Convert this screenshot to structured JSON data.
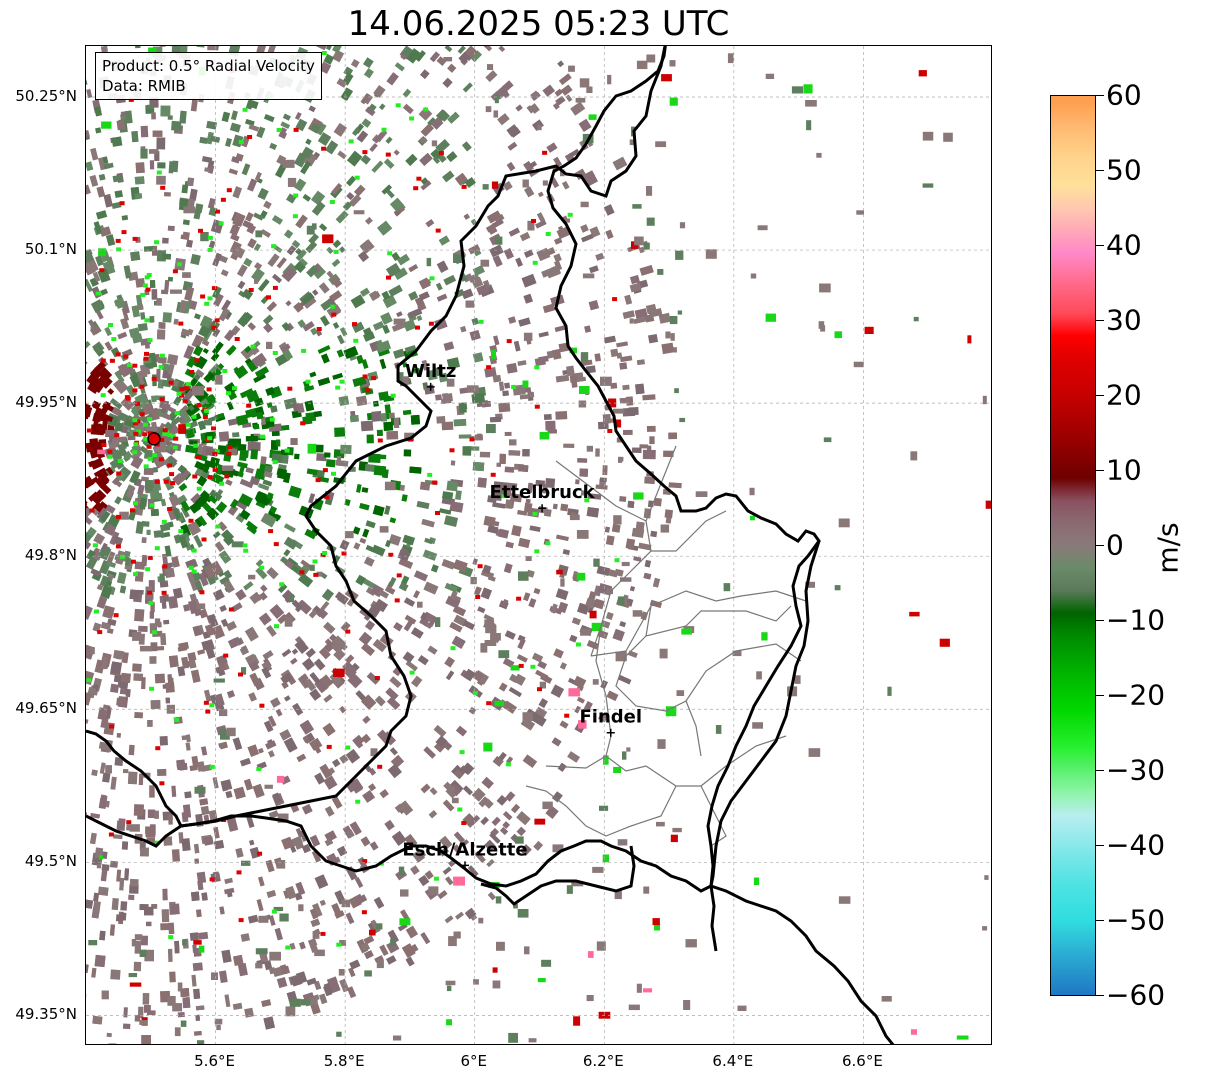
{
  "title": "14.06.2025 05:23 UTC",
  "info": {
    "product": "Product: 0.5° Radial Velocity",
    "data": "Data: RMIB"
  },
  "map": {
    "lon_range": [
      5.4,
      6.8
    ],
    "lat_range": [
      49.32,
      50.3
    ],
    "x_ticks": [
      {
        "value": 5.6,
        "label": "5.6°E"
      },
      {
        "value": 5.8,
        "label": "5.8°E"
      },
      {
        "value": 6.0,
        "label": "6°E"
      },
      {
        "value": 6.2,
        "label": "6.2°E"
      },
      {
        "value": 6.4,
        "label": "6.4°E"
      },
      {
        "value": 6.6,
        "label": "6.6°E"
      }
    ],
    "y_ticks": [
      {
        "value": 50.25,
        "label": "50.25°N"
      },
      {
        "value": 50.1,
        "label": "50.1°N"
      },
      {
        "value": 49.95,
        "label": "49.95°N"
      },
      {
        "value": 49.8,
        "label": "49.8°N"
      },
      {
        "value": 49.65,
        "label": "49.65°N"
      },
      {
        "value": 49.5,
        "label": "49.5°N"
      },
      {
        "value": 49.35,
        "label": "49.35°N"
      }
    ],
    "grid": true,
    "radar_site": {
      "lon": 5.505,
      "lat": 49.915
    },
    "cities": [
      {
        "name": "Wiltz",
        "lon": 5.932,
        "lat": 49.966
      },
      {
        "name": "Ettelbruck",
        "lon": 6.104,
        "lat": 49.847
      },
      {
        "name": "Findel",
        "lon": 6.21,
        "lat": 49.627
      },
      {
        "name": "Esch/Alzette",
        "lon": 5.985,
        "lat": 49.497
      }
    ]
  },
  "colorbar": {
    "label": "m/s",
    "min": -60,
    "max": 60,
    "ticks": [
      {
        "value": 60,
        "label": "60"
      },
      {
        "value": 50,
        "label": "50"
      },
      {
        "value": 40,
        "label": "40"
      },
      {
        "value": 30,
        "label": "30"
      },
      {
        "value": 20,
        "label": "20"
      },
      {
        "value": 10,
        "label": "10"
      },
      {
        "value": 0,
        "label": "0"
      },
      {
        "value": -10,
        "label": "−10"
      },
      {
        "value": -20,
        "label": "−20"
      },
      {
        "value": -30,
        "label": "−30"
      },
      {
        "value": -40,
        "label": "−40"
      },
      {
        "value": -50,
        "label": "−50"
      },
      {
        "value": -60,
        "label": "−60"
      }
    ],
    "colors": {
      "c_-60": "#1f78c4",
      "c_-55": "#2aa8d2",
      "c_-50": "#30dde0",
      "c_-45": "#50e3e3",
      "c_-40": "#8ae8ea",
      "c_-36": "#b8eef0",
      "c_-33": "#8ef4a8",
      "c_-30": "#5cf070",
      "c_-27": "#27f030",
      "c_-22": "#00d800",
      "c_-17": "#00b400",
      "c_-12": "#008a00",
      "c_-9": "#006400",
      "c_-6": "#5a7a5a",
      "c_-3": "#6a8a6a",
      "c_0": "#8a7a7a",
      "c_3": "#8a6a72",
      "c_6": "#8a5060",
      "c_9": "#6e0000",
      "c_13": "#900000",
      "c_17": "#b00000",
      "c_21": "#cc0000",
      "c_25": "#e00000",
      "c_28": "#ff0000",
      "c_31": "#ff4a5a",
      "c_35": "#ff6a8a",
      "c_39": "#ff88c8",
      "c_42": "#ffa8b8",
      "c_45": "#ffc8b0",
      "c_48": "#ffe09a",
      "c_52": "#ffd28a",
      "c_56": "#ffb870",
      "c_59": "#ffa050"
    }
  }
}
